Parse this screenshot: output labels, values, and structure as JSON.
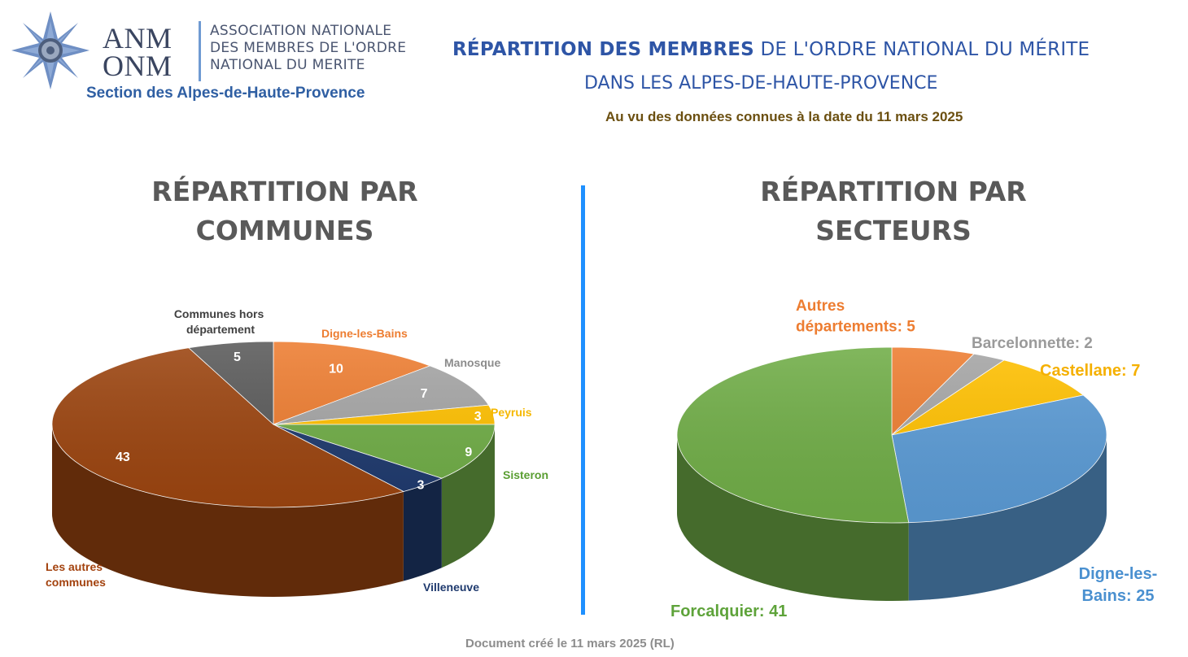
{
  "logo": {
    "anm_line1": "ANM",
    "anm_line2": "ONM",
    "assoc_line1": "ASSOCIATION NATIONALE",
    "assoc_line2": "DES MEMBRES DE L'ORDRE",
    "assoc_line3": "NATIONAL DU MERITE",
    "section": "Section des Alpes-de-Haute-Provence"
  },
  "header": {
    "line1_bold": "RÉPARTITION DES MEMBRES",
    "line1_rest": " DE L'ORDRE NATIONAL DU MÉRITE",
    "line2": "DANS LES ALPES-DE-HAUTE-PROVENCE",
    "line3": "Au vu des données connues à la date du 11 mars 2025"
  },
  "footer": "Document créé le 11 mars 2025 (RL)",
  "colors": {
    "header_blue": "#2e55a6",
    "divider": "#1e90ff",
    "orange": "#ed7d31",
    "grey": "#a5a5a5",
    "yellow": "#ffc000",
    "green": "#70ad47",
    "navy": "#1f3a6e",
    "brown": "#9c4510",
    "dark_grey": "#5a5a5a",
    "blue": "#5b9bd5"
  },
  "chart_data": [
    {
      "type": "pie",
      "title_line1": "RÉPARTITION PAR",
      "title_line2": "COMMUNES",
      "slices": [
        {
          "label": "Digne-les-Bains",
          "value": 10,
          "color": "#ed7d31",
          "label_color": "#ed7d31"
        },
        {
          "label": "Manosque",
          "value": 7,
          "color": "#a5a5a5",
          "label_color": "#8c8c8c"
        },
        {
          "label": "Peyruis",
          "value": 3,
          "color": "#ffc000",
          "label_color": "#f5b800"
        },
        {
          "label": "Sisteron",
          "value": 9,
          "color": "#70ad47",
          "label_color": "#5a9e32"
        },
        {
          "label": "Villeneuve",
          "value": 3,
          "color": "#1f3a6e",
          "label_color": "#1f3a6e"
        },
        {
          "label": "Les autres communes",
          "value": 43,
          "color": "#9c4510",
          "label_color": "#a3420e"
        },
        {
          "label": "Communes hors département",
          "value": 5,
          "color": "#5a5a5a",
          "label_color": "#404040"
        }
      ]
    },
    {
      "type": "pie",
      "title_line1": "RÉPARTITION PAR",
      "title_line2": "SECTEURS",
      "slices": [
        {
          "label": "Autres départements: 5",
          "value": 5,
          "color": "#ed7d31",
          "label_color": "#ed7d31"
        },
        {
          "label": "Barcelonnette: 2",
          "value": 2,
          "color": "#a5a5a5",
          "label_color": "#9a9a9a"
        },
        {
          "label": "Castellane: 7",
          "value": 7,
          "color": "#ffc000",
          "label_color": "#f5b000"
        },
        {
          "label": "Digne-les-Bains: 25",
          "value": 25,
          "color": "#5b9bd5",
          "label_color": "#4a90d0"
        },
        {
          "label": "Forcalquier: 41",
          "value": 41,
          "color": "#70ad47",
          "label_color": "#5ea33a"
        }
      ]
    }
  ]
}
